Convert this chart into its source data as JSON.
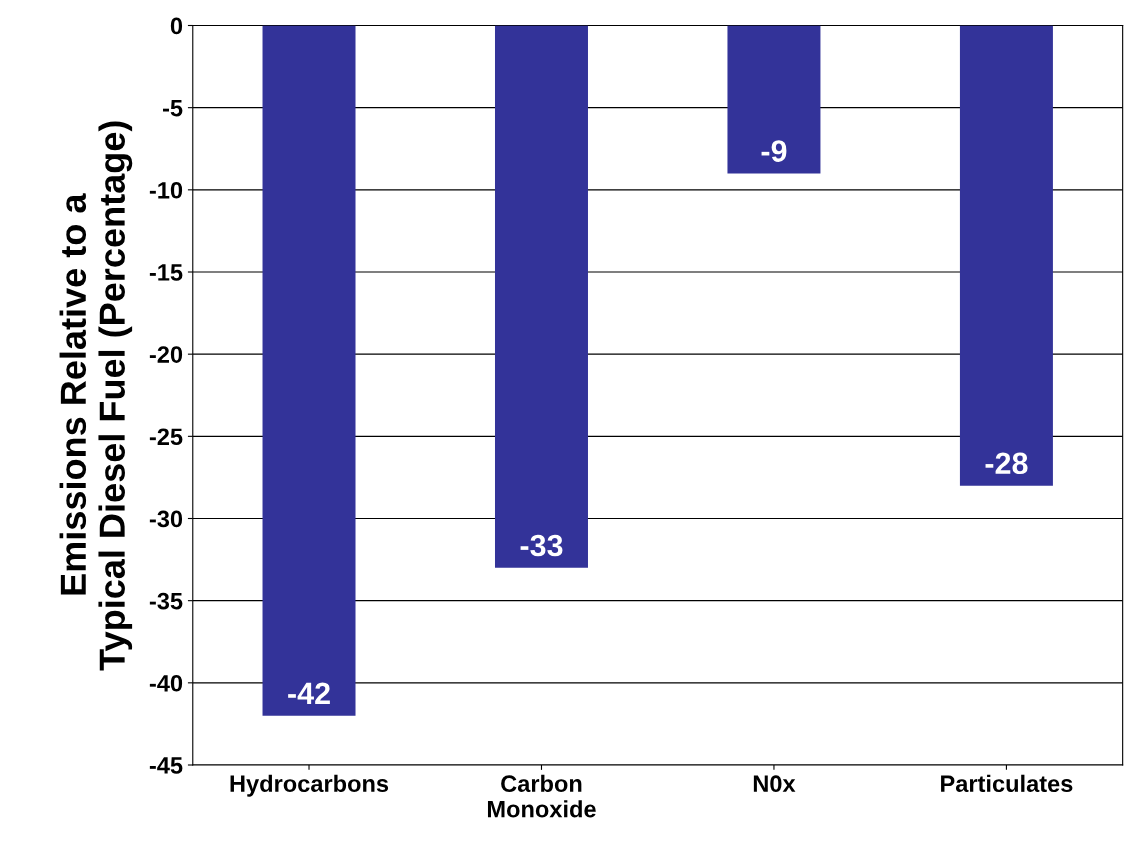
{
  "chart_data": {
    "type": "bar",
    "ylabel": "Emissions Relative to a\nTypical Diesel Fuel (Percentage)",
    "categories": [
      "Hydrocarbons",
      "Carbon\nMonoxide",
      "N0x",
      "Particulates"
    ],
    "values": [
      -42,
      -33,
      -9,
      -28
    ],
    "color": "#333399",
    "data_labels": true,
    "ylim": [
      -45,
      0
    ],
    "yticks": [
      0,
      -5,
      -10,
      -15,
      -20,
      -25,
      -30,
      -35,
      -40,
      -45
    ],
    "grid": "y"
  }
}
